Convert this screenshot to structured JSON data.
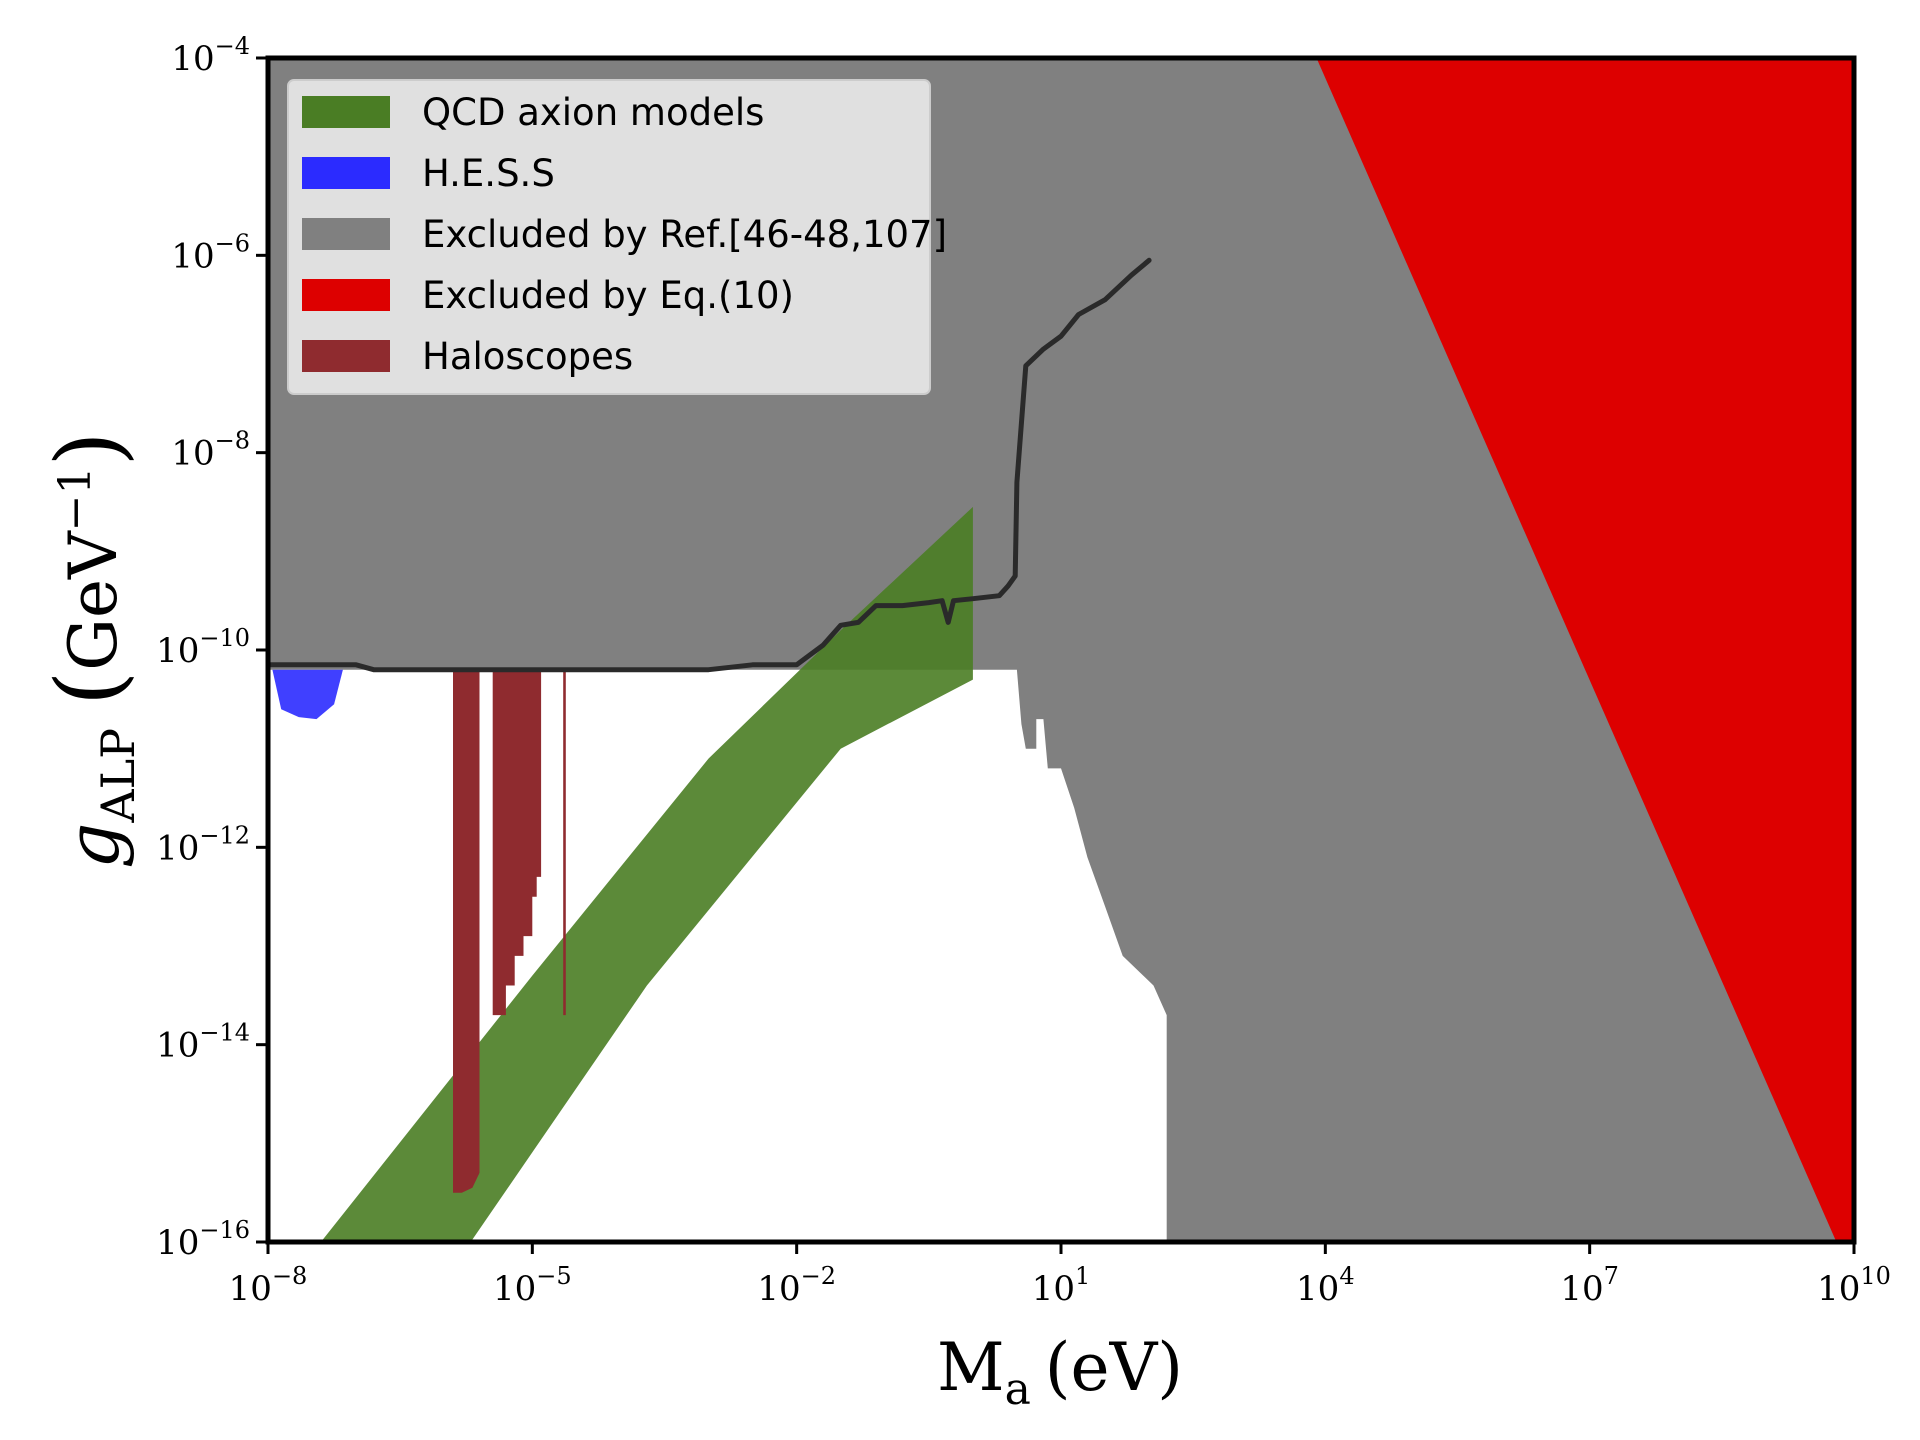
{
  "chart_data": {
    "type": "area",
    "title": "",
    "xlabel": {
      "main": "M",
      "sub": "a",
      "unit": "(eV)"
    },
    "ylabel": {
      "main": "g",
      "sub": "ALP",
      "unit_open": "(",
      "unit_base": "GeV",
      "unit_exp": "−1",
      "unit_close": ")"
    },
    "x_scale": "log10",
    "y_scale": "log10",
    "xlim_log10": [
      -8,
      10
    ],
    "ylim_log10": [
      -16,
      -4
    ],
    "grid": false,
    "legend_position": "top-left",
    "x_ticks": [
      {
        "base": "10",
        "exp": "−8",
        "log": -8
      },
      {
        "base": "10",
        "exp": "−5",
        "log": -5
      },
      {
        "base": "10",
        "exp": "−2",
        "log": -2
      },
      {
        "base": "10",
        "exp": "1",
        "log": 1
      },
      {
        "base": "10",
        "exp": "4",
        "log": 4
      },
      {
        "base": "10",
        "exp": "7",
        "log": 7
      },
      {
        "base": "10",
        "exp": "10",
        "log": 10
      }
    ],
    "y_ticks": [
      {
        "base": "10",
        "exp": "−4",
        "log": -4
      },
      {
        "base": "10",
        "exp": "−6",
        "log": -6
      },
      {
        "base": "10",
        "exp": "−8",
        "log": -8
      },
      {
        "base": "10",
        "exp": "−10",
        "log": -10
      },
      {
        "base": "10",
        "exp": "−12",
        "log": -12
      },
      {
        "base": "10",
        "exp": "−14",
        "log": -14
      },
      {
        "base": "10",
        "exp": "−16",
        "log": -16
      }
    ],
    "legend": [
      {
        "label": "QCD axion models",
        "color": "#4a7d24"
      },
      {
        "label": "H.E.S.S",
        "color": "#2b2bff"
      },
      {
        "label": "Excluded by Ref.[46-48,107]",
        "color": "#808080"
      },
      {
        "label": "Excluded by Eq.(10)",
        "color": "#dd0000"
      },
      {
        "label": "Haloscopes",
        "color": "#8f2b2f"
      }
    ],
    "series": [
      {
        "name": "Excluded by Ref.[46-48,107]",
        "color": "#808080",
        "opacity": 1,
        "polygon_log10": [
          [
            -8,
            -4
          ],
          [
            10,
            -4
          ],
          [
            10,
            -16
          ],
          [
            2.2,
            -16
          ],
          [
            2.2,
            -13.7
          ],
          [
            2.05,
            -13.4
          ],
          [
            1.7,
            -13.1
          ],
          [
            1.5,
            -12.6
          ],
          [
            1.3,
            -12.1
          ],
          [
            1.15,
            -11.6
          ],
          [
            1.0,
            -11.2
          ],
          [
            0.85,
            -11.2
          ],
          [
            0.8,
            -10.7
          ],
          [
            0.72,
            -10.7
          ],
          [
            0.72,
            -11.0
          ],
          [
            0.6,
            -11.0
          ],
          [
            0.55,
            -10.75
          ],
          [
            0.5,
            -10.2
          ],
          [
            -8,
            -10.2
          ]
        ]
      },
      {
        "name": "Excluded by Eq.(10)",
        "color": "#dd0000",
        "opacity": 1,
        "polygon_log10": [
          [
            3.9,
            -4
          ],
          [
            10,
            -4
          ],
          [
            10,
            -16
          ],
          [
            9.8,
            -16
          ]
        ]
      },
      {
        "name": "QCD axion models",
        "color": "#4a7d24",
        "opacity": 0.9,
        "polygon_log10": [
          [
            -7.4,
            -16
          ],
          [
            -5.7,
            -16
          ],
          [
            -3.7,
            -13.4
          ],
          [
            -1.5,
            -11.0
          ],
          [
            0.0,
            -10.3
          ],
          [
            0.0,
            -8.55
          ],
          [
            -1.5,
            -9.8
          ],
          [
            -3.0,
            -11.1
          ],
          [
            -5.0,
            -13.3
          ]
        ]
      },
      {
        "name": "H.E.S.S",
        "color": "#2b2bff",
        "opacity": 0.9,
        "polygon_log10": [
          [
            -7.95,
            -10.2
          ],
          [
            -7.15,
            -10.2
          ],
          [
            -7.25,
            -10.55
          ],
          [
            -7.45,
            -10.7
          ],
          [
            -7.65,
            -10.68
          ],
          [
            -7.85,
            -10.6
          ]
        ]
      },
      {
        "name": "Haloscopes",
        "color": "#8f2b2f",
        "opacity": 1,
        "polygon_log10": [
          [
            -5.9,
            -10.2
          ],
          [
            -5.6,
            -10.2
          ],
          [
            -5.6,
            -15.3
          ],
          [
            -5.68,
            -15.45
          ],
          [
            -5.8,
            -15.5
          ],
          [
            -5.9,
            -15.5
          ]
        ]
      },
      {
        "name": "Haloscopes",
        "color": "#8f2b2f",
        "opacity": 1,
        "polygon_log10": [
          [
            -5.45,
            -10.2
          ],
          [
            -4.9,
            -10.2
          ],
          [
            -4.9,
            -12.3
          ],
          [
            -4.95,
            -12.3
          ],
          [
            -4.95,
            -12.5
          ],
          [
            -5.0,
            -12.5
          ],
          [
            -5.0,
            -12.9
          ],
          [
            -5.1,
            -12.9
          ],
          [
            -5.1,
            -13.1
          ],
          [
            -5.2,
            -13.1
          ],
          [
            -5.2,
            -13.4
          ],
          [
            -5.3,
            -13.4
          ],
          [
            -5.3,
            -13.7
          ],
          [
            -5.45,
            -13.7
          ]
        ]
      },
      {
        "name": "Haloscopes",
        "color": "#8f2b2f",
        "opacity": 1,
        "polygon_log10": [
          [
            -4.65,
            -10.2
          ],
          [
            -4.62,
            -10.2
          ],
          [
            -4.62,
            -13.7
          ],
          [
            -4.65,
            -13.7
          ]
        ]
      }
    ],
    "lines": [
      {
        "name": "exclusion boundary",
        "color": "#2a2a2a",
        "points_log10": [
          [
            -8,
            -10.15
          ],
          [
            -7.0,
            -10.15
          ],
          [
            -6.8,
            -10.2
          ],
          [
            -3.0,
            -10.2
          ],
          [
            -2.5,
            -10.15
          ],
          [
            -2.0,
            -10.15
          ],
          [
            -1.7,
            -9.95
          ],
          [
            -1.5,
            -9.75
          ],
          [
            -1.3,
            -9.72
          ],
          [
            -1.1,
            -9.55
          ],
          [
            -0.8,
            -9.55
          ],
          [
            -0.5,
            -9.52
          ],
          [
            -0.35,
            -9.5
          ],
          [
            -0.28,
            -9.72
          ],
          [
            -0.22,
            -9.5
          ],
          [
            0.0,
            -9.48
          ],
          [
            0.3,
            -9.45
          ],
          [
            0.4,
            -9.35
          ],
          [
            0.48,
            -9.25
          ],
          [
            0.5,
            -8.3
          ],
          [
            0.6,
            -7.12
          ],
          [
            0.8,
            -6.95
          ],
          [
            1.0,
            -6.82
          ],
          [
            1.2,
            -6.6
          ],
          [
            1.5,
            -6.45
          ],
          [
            1.8,
            -6.2
          ],
          [
            2.0,
            -6.05
          ]
        ]
      }
    ]
  }
}
